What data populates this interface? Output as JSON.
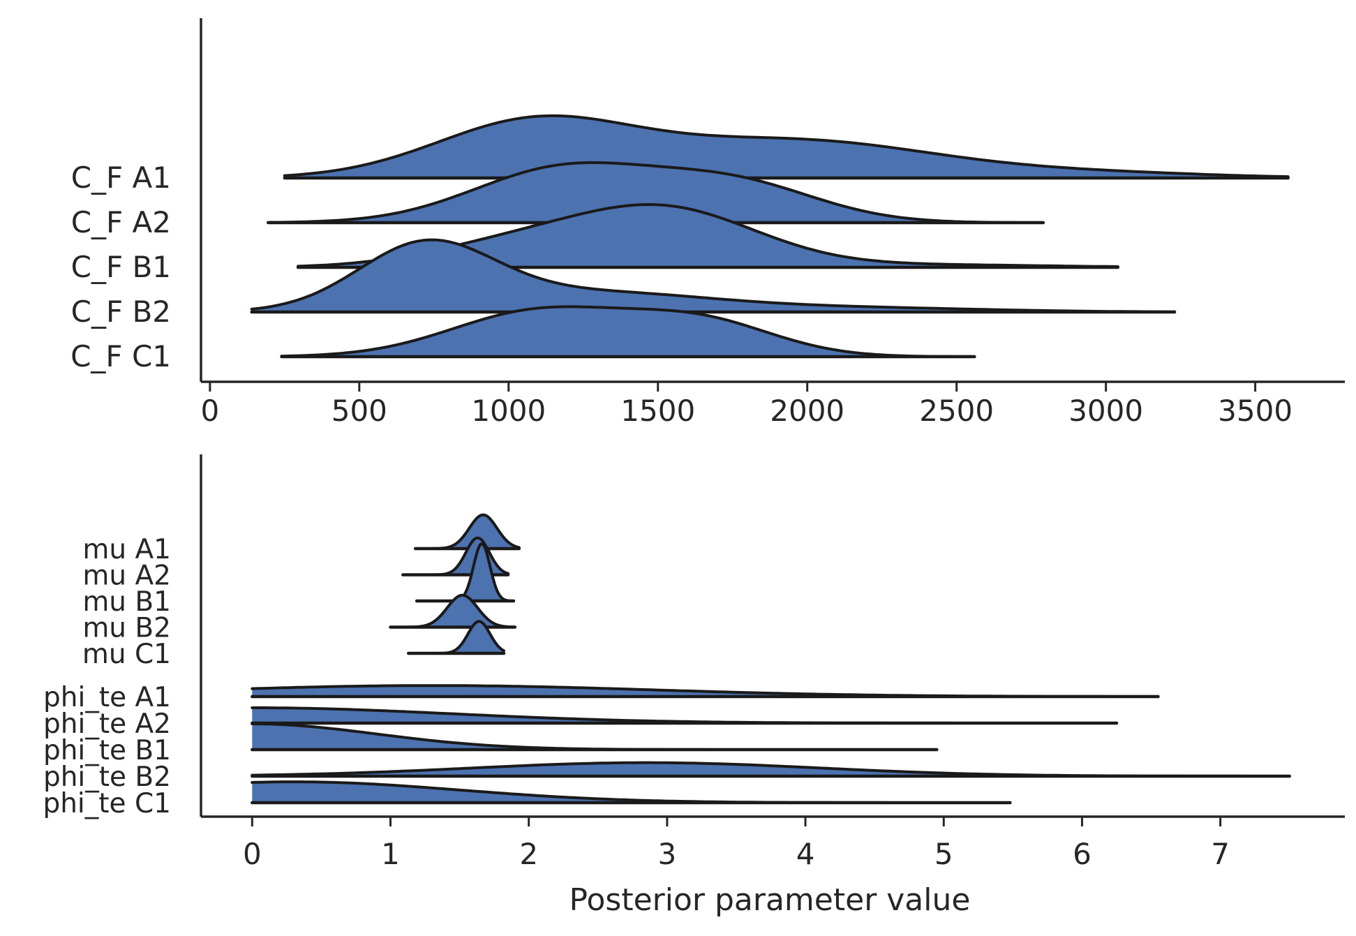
{
  "figure": {
    "xlabel": "Posterior parameter value"
  },
  "chart_data": [
    {
      "type": "ridgeline",
      "xlabel": "",
      "ylabel": "",
      "xlim": [
        -30,
        3800
      ],
      "xticks": [
        0,
        500,
        1000,
        1500,
        2000,
        2500,
        3000,
        3500
      ],
      "xticklabels": [
        "0",
        "500",
        "1000",
        "1500",
        "2000",
        "2500",
        "3000",
        "3500"
      ],
      "fill_color": "#4c72b0",
      "line_color": "#1a1a1a",
      "series": [
        {
          "name": "C_F A1",
          "range": [
            250,
            3610
          ],
          "peaks": [
            {
              "mu": 1080,
              "sigma": 330,
              "w": 0.86
            },
            {
              "mu": 1950,
              "sigma": 480,
              "w": 0.6
            },
            {
              "mu": 3000,
              "sigma": 380,
              "w": 0.07
            }
          ]
        },
        {
          "name": "C_F A2",
          "range": [
            195,
            2790
          ],
          "peaks": [
            {
              "mu": 1180,
              "sigma": 300,
              "w": 0.85
            },
            {
              "mu": 1750,
              "sigma": 280,
              "w": 0.62
            }
          ]
        },
        {
          "name": "C_F B1",
          "range": [
            295,
            3040
          ],
          "peaks": [
            {
              "mu": 1520,
              "sigma": 310,
              "w": 0.92
            },
            {
              "mu": 1000,
              "sigma": 290,
              "w": 0.33
            },
            {
              "mu": 2400,
              "sigma": 400,
              "w": 0.04
            }
          ]
        },
        {
          "name": "C_F B2",
          "range": [
            140,
            3230
          ],
          "peaks": [
            {
              "mu": 720,
              "sigma": 225,
              "w": 1.0
            },
            {
              "mu": 1250,
              "sigma": 420,
              "w": 0.32
            },
            {
              "mu": 2200,
              "sigma": 420,
              "w": 0.06
            }
          ]
        },
        {
          "name": "C_F C1",
          "range": [
            240,
            2560
          ],
          "peaks": [
            {
              "mu": 1100,
              "sigma": 290,
              "w": 0.72
            },
            {
              "mu": 1640,
              "sigma": 250,
              "w": 0.55
            }
          ]
        }
      ]
    },
    {
      "type": "ridgeline",
      "xlabel": "Posterior parameter value",
      "ylabel": "",
      "xlim": [
        -0.37,
        7.9
      ],
      "xticks": [
        0,
        1,
        2,
        3,
        4,
        5,
        6,
        7
      ],
      "xticklabels": [
        "0",
        "1",
        "2",
        "3",
        "4",
        "5",
        "6",
        "7"
      ],
      "fill_color": "#4c72b0",
      "line_color": "#1a1a1a",
      "series": [
        {
          "name": "mu A1",
          "range": [
            1.18,
            1.93
          ],
          "peaks": [
            {
              "mu": 1.67,
              "sigma": 0.1,
              "w": 0.55
            }
          ]
        },
        {
          "name": "mu A2",
          "range": [
            1.09,
            1.85
          ],
          "peaks": [
            {
              "mu": 1.63,
              "sigma": 0.085,
              "w": 0.6
            }
          ]
        },
        {
          "name": "mu B1",
          "range": [
            1.19,
            1.89
          ],
          "peaks": [
            {
              "mu": 1.66,
              "sigma": 0.06,
              "w": 0.93
            }
          ]
        },
        {
          "name": "mu B2",
          "range": [
            1.0,
            1.9
          ],
          "peaks": [
            {
              "mu": 1.52,
              "sigma": 0.11,
              "w": 0.52
            }
          ]
        },
        {
          "name": "mu C1",
          "range": [
            1.13,
            1.82
          ],
          "peaks": [
            {
              "mu": 1.64,
              "sigma": 0.08,
              "w": 0.52
            }
          ]
        },
        {
          "name": "phi_te A1",
          "range": [
            0,
            6.55
          ],
          "peaks": [
            {
              "mu": 1.3,
              "sigma": 1.6,
              "w": 0.18
            }
          ]
        },
        {
          "name": "phi_te A2",
          "range": [
            0,
            6.25
          ],
          "peaks": [
            {
              "mu": 0,
              "sigma": 1.45,
              "w": 0.25
            }
          ]
        },
        {
          "name": "phi_te B1",
          "range": [
            0,
            4.95
          ],
          "peaks": [
            {
              "mu": 0,
              "sigma": 0.9,
              "w": 0.42
            }
          ]
        },
        {
          "name": "phi_te B2",
          "range": [
            0,
            7.5
          ],
          "peaks": [
            {
              "mu": 2.85,
              "sigma": 1.25,
              "w": 0.22
            }
          ]
        },
        {
          "name": "phi_te C1",
          "range": [
            0,
            5.48
          ],
          "peaks": [
            {
              "mu": 0.3,
              "sigma": 1.2,
              "w": 0.34
            }
          ]
        }
      ]
    }
  ]
}
